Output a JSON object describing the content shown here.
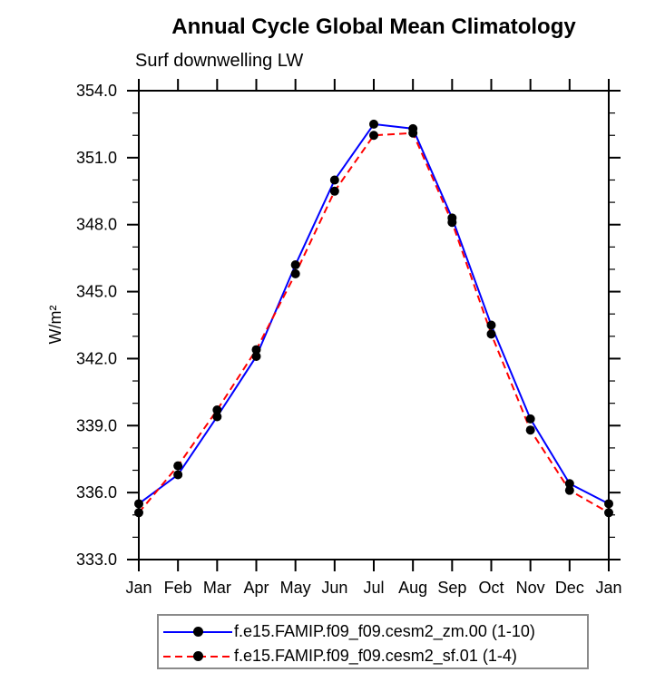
{
  "page": {
    "background": "#ffffff"
  },
  "chart_data": {
    "type": "line",
    "title": "Annual Cycle Global Mean Climatology",
    "subtitle": "Surf downwelling LW",
    "xlabel": "",
    "ylabel": "W/m²",
    "categories": [
      "Jan",
      "Feb",
      "Mar",
      "Apr",
      "May",
      "Jun",
      "Jul",
      "Aug",
      "Sep",
      "Oct",
      "Nov",
      "Dec",
      "Jan"
    ],
    "ylim": [
      333.0,
      354.0
    ],
    "y_major_step": 3.0,
    "y_minor_step": 1.0,
    "y_tick_labels": [
      "333.0",
      "336.0",
      "339.0",
      "342.0",
      "345.0",
      "348.0",
      "351.0",
      "354.0"
    ],
    "grid": false,
    "legend_position": "bottom",
    "axis_color": "#000000",
    "marker_color": "#000000",
    "series": [
      {
        "name": "f.e15.FAMIP.f09_f09.cesm2_zm.00 (1-10)",
        "color": "#0000ff",
        "style": "solid",
        "marker": "circle",
        "values": [
          335.5,
          336.8,
          339.4,
          342.1,
          346.2,
          350.0,
          352.5,
          352.3,
          348.3,
          343.5,
          339.3,
          336.4,
          335.5
        ]
      },
      {
        "name": "f.e15.FAMIP.f09_f09.cesm2_sf.01 (1-4)",
        "color": "#ff0000",
        "style": "dashed",
        "marker": "circle",
        "values": [
          335.1,
          337.2,
          339.7,
          342.4,
          345.8,
          349.5,
          352.0,
          352.1,
          348.1,
          343.1,
          338.8,
          336.1,
          335.1
        ]
      }
    ]
  }
}
